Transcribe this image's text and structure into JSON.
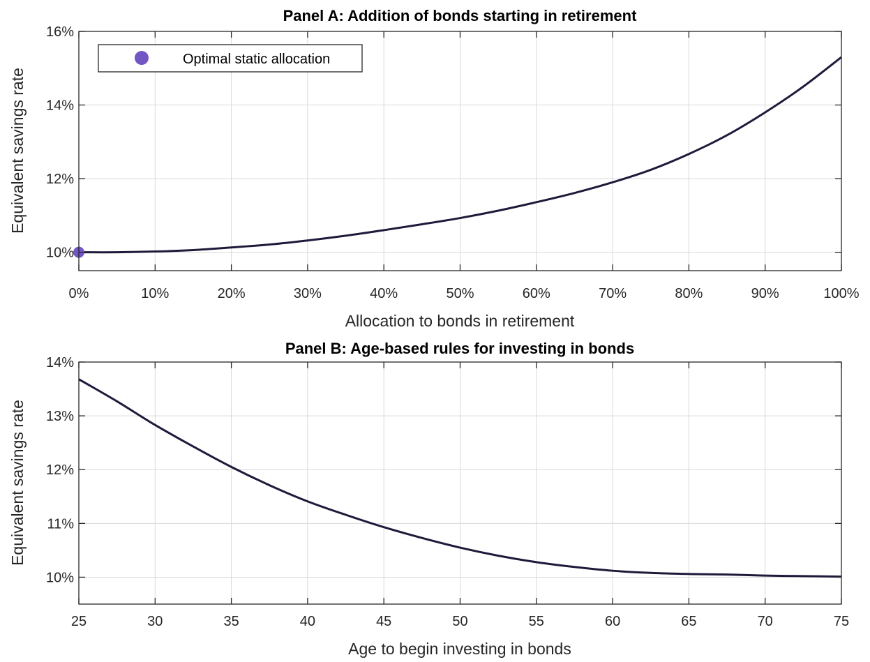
{
  "chart_data": [
    {
      "type": "line",
      "title": "Panel A: Addition of bonds starting in retirement",
      "xlabel": "Allocation to bonds in retirement",
      "ylabel": "Equivalent savings rate",
      "xlim": [
        0,
        100
      ],
      "ylim": [
        9.5,
        16
      ],
      "xticks": [
        0,
        10,
        20,
        30,
        40,
        50,
        60,
        70,
        80,
        90,
        100
      ],
      "xtick_labels": [
        "0%",
        "10%",
        "20%",
        "30%",
        "40%",
        "50%",
        "60%",
        "70%",
        "80%",
        "90%",
        "100%"
      ],
      "yticks": [
        10,
        12,
        14,
        16
      ],
      "ytick_labels": [
        "10%",
        "12%",
        "14%",
        "16%"
      ],
      "grid": true,
      "legend_placement": "top-left",
      "series": [
        {
          "x": [
            0,
            5,
            10,
            15,
            20,
            25,
            30,
            35,
            40,
            45,
            50,
            55,
            60,
            65,
            70,
            75,
            80,
            85,
            90,
            95,
            100
          ],
          "y": [
            10.0,
            10.0,
            10.02,
            10.06,
            10.13,
            10.21,
            10.32,
            10.45,
            10.6,
            10.76,
            10.93,
            11.13,
            11.36,
            11.61,
            11.9,
            12.24,
            12.67,
            13.18,
            13.8,
            14.5,
            15.3
          ],
          "color": "#1f1a3a"
        }
      ],
      "markers": [
        {
          "name": "Optimal static allocation",
          "x": 0,
          "y": 10.0,
          "color": "#7256c4"
        }
      ]
    },
    {
      "type": "line",
      "title": "Panel B: Age-based rules for investing in bonds",
      "xlabel": "Age to begin investing in bonds",
      "ylabel": "Equivalent savings rate",
      "xlim": [
        25,
        75
      ],
      "ylim": [
        9.5,
        14
      ],
      "xticks": [
        25,
        30,
        35,
        40,
        45,
        50,
        55,
        60,
        65,
        70,
        75
      ],
      "xtick_labels": [
        "25",
        "30",
        "35",
        "40",
        "45",
        "50",
        "55",
        "60",
        "65",
        "70",
        "75"
      ],
      "yticks": [
        10,
        11,
        12,
        13,
        14
      ],
      "ytick_labels": [
        "10%",
        "11%",
        "12%",
        "13%",
        "14%"
      ],
      "grid": true,
      "series": [
        {
          "x": [
            25,
            27.5,
            30,
            32.5,
            35,
            37.5,
            40,
            42.5,
            45,
            47.5,
            50,
            52.5,
            55,
            57.5,
            60,
            62.5,
            65,
            67.5,
            70,
            72.5,
            75
          ],
          "y": [
            13.68,
            13.27,
            12.83,
            12.43,
            12.05,
            11.71,
            11.41,
            11.16,
            10.93,
            10.73,
            10.55,
            10.4,
            10.28,
            10.19,
            10.12,
            10.08,
            10.06,
            10.05,
            10.03,
            10.02,
            10.01
          ],
          "color": "#1f1a3a"
        }
      ]
    }
  ]
}
